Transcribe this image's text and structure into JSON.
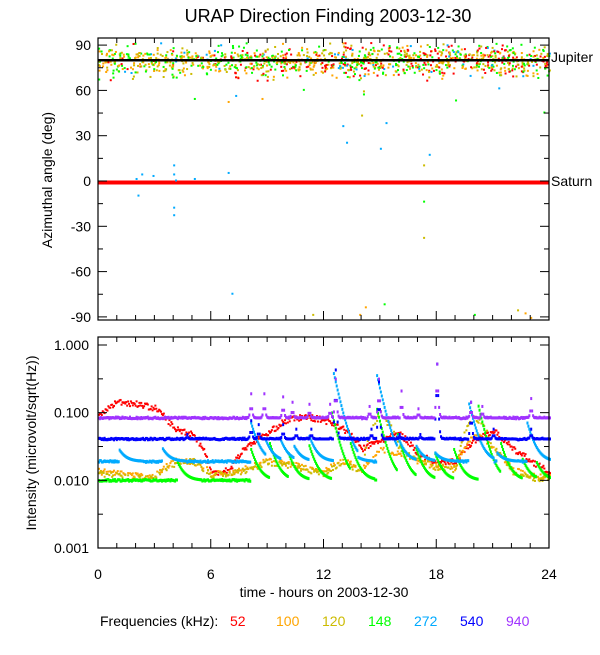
{
  "chart_data": [
    {
      "type": "scatter",
      "title": "URAP Direction Finding  2003-12-30",
      "ylabel": "Azimuthal angle (deg)",
      "xlabel": "",
      "xlim": [
        0,
        24
      ],
      "ylim": [
        -90,
        90
      ],
      "xticks": [
        0,
        6,
        12,
        18,
        24
      ],
      "yticks": [
        90,
        60,
        30,
        0,
        -30,
        -60,
        -90
      ],
      "ytick_labels": [
        "90",
        "60",
        "30",
        "0",
        "-30",
        "-60",
        "-90"
      ],
      "reference_lines": [
        {
          "label": "Jupiter",
          "value": 80,
          "color": "#000000"
        },
        {
          "label": "Saturn",
          "value": -1,
          "color": "#ff0000"
        }
      ],
      "cluster": {
        "center_deg": 80,
        "spread_deg": 5,
        "note_freqs": [
          "52",
          "100",
          "120",
          "148",
          "272"
        ]
      },
      "outliers": [
        {
          "t": 2.0,
          "deg": 2,
          "f": "272"
        },
        {
          "t": 2.3,
          "deg": 5,
          "f": "272"
        },
        {
          "t": 2.9,
          "deg": 4,
          "f": "272"
        },
        {
          "t": 2.1,
          "deg": -9,
          "f": "272"
        },
        {
          "t": 4.0,
          "deg": 11,
          "f": "272"
        },
        {
          "t": 4.0,
          "deg": 5,
          "f": "272"
        },
        {
          "t": 4.1,
          "deg": 1,
          "f": "272"
        },
        {
          "t": 4.0,
          "deg": -17,
          "f": "272"
        },
        {
          "t": 4.0,
          "deg": -22,
          "f": "272"
        },
        {
          "t": 5.1,
          "deg": 2,
          "f": "272"
        },
        {
          "t": 6.9,
          "deg": 6,
          "f": "272"
        },
        {
          "t": 7.3,
          "deg": 57,
          "f": "272"
        },
        {
          "t": 7.1,
          "deg": -74,
          "f": "272"
        },
        {
          "t": 13.0,
          "deg": 37,
          "f": "272"
        },
        {
          "t": 13.2,
          "deg": 26,
          "f": "272"
        },
        {
          "t": 15.0,
          "deg": 22,
          "f": "272"
        },
        {
          "t": 15.3,
          "deg": 39,
          "f": "272"
        },
        {
          "t": 17.6,
          "deg": 18,
          "f": "272"
        },
        {
          "t": 21.3,
          "deg": 62,
          "f": "272"
        },
        {
          "t": 5.1,
          "deg": 55,
          "f": "148"
        },
        {
          "t": 10.9,
          "deg": 61,
          "f": "148"
        },
        {
          "t": 15.2,
          "deg": -81,
          "f": "148"
        },
        {
          "t": 17.3,
          "deg": -13,
          "f": "148"
        },
        {
          "t": 19.0,
          "deg": 54,
          "f": "148"
        },
        {
          "t": 23.7,
          "deg": 46,
          "f": "148"
        },
        {
          "t": 14.1,
          "deg": 58,
          "f": "148"
        },
        {
          "t": 20.0,
          "deg": -88,
          "f": "148"
        },
        {
          "t": 6.9,
          "deg": 53,
          "f": "100"
        },
        {
          "t": 8.7,
          "deg": 55,
          "f": "100"
        },
        {
          "t": 14.2,
          "deg": -83,
          "f": "100"
        },
        {
          "t": 13.9,
          "deg": -88,
          "f": "100"
        },
        {
          "t": 22.7,
          "deg": -87,
          "f": "100"
        },
        {
          "t": 23.0,
          "deg": -90,
          "f": "100"
        },
        {
          "t": 14.0,
          "deg": 44,
          "f": "120"
        },
        {
          "t": 14.1,
          "deg": 60,
          "f": "120"
        },
        {
          "t": 17.3,
          "deg": 11,
          "f": "120"
        },
        {
          "t": 17.3,
          "deg": -37,
          "f": "120"
        },
        {
          "t": 11.4,
          "deg": -88,
          "f": "120"
        },
        {
          "t": 22.3,
          "deg": -85,
          "f": "120"
        }
      ]
    },
    {
      "type": "scatter",
      "ylabel": "Intensity (microvolt/sqrt(Hz))",
      "xlabel": "time - hours on 2003-12-30",
      "xlim": [
        0,
        24
      ],
      "ylim": [
        0.001,
        1.0
      ],
      "yscale": "log",
      "xticks": [
        0,
        6,
        12,
        18,
        24
      ],
      "xtick_labels": [
        "0",
        "6",
        "12",
        "18",
        "24"
      ],
      "yticks": [
        1.0,
        0.1,
        0.01,
        0.001
      ],
      "ytick_labels": [
        "1.000",
        "0.100",
        "0.010",
        "0.001"
      ],
      "legend_title": "Frequencies (kHz):",
      "legend_placement": "bottom",
      "series": [
        {
          "name": "52",
          "color": "#ff0000",
          "hourly": [
            0.09,
            0.15,
            0.14,
            0.12,
            0.06,
            0.05,
            0.013,
            0.015,
            0.035,
            0.05,
            0.08,
            0.09,
            0.08,
            0.06,
            0.03,
            0.04,
            0.05,
            0.025,
            0.018,
            0.02,
            0.04,
            0.055,
            0.03,
            0.02,
            0.013
          ],
          "peaks": []
        },
        {
          "name": "100",
          "color": "#ffa500",
          "hourly": [
            0.014,
            0.013,
            0.012,
            0.012,
            0.02,
            0.02,
            0.013,
            0.013,
            0.016,
            0.02,
            0.018,
            0.016,
            0.014,
            0.02,
            0.015,
            0.03,
            0.025,
            0.02,
            0.017,
            0.016,
            0.05,
            0.03,
            0.015,
            0.012,
            0.012
          ],
          "peaks": []
        },
        {
          "name": "120",
          "color": "#ccbb00",
          "hourly": [
            0.013,
            0.012,
            0.011,
            0.011,
            0.018,
            0.02,
            0.012,
            0.013,
            0.015,
            0.019,
            0.017,
            0.015,
            0.013,
            0.019,
            0.014,
            0.1,
            0.03,
            0.02,
            0.016,
            0.015,
            0.09,
            0.03,
            0.014,
            0.011,
            0.011
          ],
          "peaks": []
        },
        {
          "name": "148",
          "color": "#00ff00",
          "baseline": 0.0105,
          "peaks": [
            [
              4.3,
              0.017
            ],
            [
              8.2,
              0.025
            ],
            [
              9.2,
              0.03
            ],
            [
              10.2,
              0.022
            ],
            [
              11.3,
              0.028
            ],
            [
              12.5,
              0.08
            ],
            [
              13.5,
              0.03
            ],
            [
              14.9,
              0.09
            ],
            [
              16.0,
              0.04
            ],
            [
              17.0,
              0.025
            ],
            [
              18.0,
              0.022
            ],
            [
              19.0,
              0.025
            ],
            [
              20.3,
              0.1
            ],
            [
              21.5,
              0.03
            ],
            [
              22.6,
              0.02
            ],
            [
              23.4,
              0.017
            ]
          ]
        },
        {
          "name": "272",
          "color": "#00aaff",
          "baseline": 0.02,
          "peaks": [
            [
              1.2,
              0.027
            ],
            [
              3.5,
              0.028
            ],
            [
              8.2,
              0.06
            ],
            [
              9.0,
              0.035
            ],
            [
              9.8,
              0.035
            ],
            [
              10.5,
              0.03
            ],
            [
              11.3,
              0.04
            ],
            [
              12.6,
              0.3
            ],
            [
              13.4,
              0.03
            ],
            [
              14.9,
              0.28
            ],
            [
              16.0,
              0.04
            ],
            [
              17.0,
              0.03
            ],
            [
              18.0,
              0.025
            ],
            [
              19.8,
              0.11
            ],
            [
              21.3,
              0.025
            ],
            [
              22.9,
              0.06
            ]
          ]
        },
        {
          "name": "540",
          "color": "#0000ff",
          "baseline": 0.043,
          "peaks": [
            [
              4.7,
              0.05
            ],
            [
              8.1,
              0.08
            ],
            [
              8.5,
              0.07
            ],
            [
              9.8,
              0.07
            ],
            [
              10.5,
              0.06
            ],
            [
              11.3,
              0.06
            ],
            [
              12.6,
              0.45
            ],
            [
              14.5,
              0.06
            ],
            [
              14.9,
              0.3
            ],
            [
              16.0,
              0.05
            ],
            [
              17.1,
              0.05
            ],
            [
              18.0,
              0.55
            ],
            [
              19.8,
              0.15
            ],
            [
              21.0,
              0.06
            ],
            [
              23.0,
              0.06
            ]
          ]
        },
        {
          "name": "940",
          "color": "#a033ff",
          "baseline": 0.088,
          "peaks": [
            [
              8.1,
              0.2
            ],
            [
              8.8,
              0.2
            ],
            [
              9.8,
              0.18
            ],
            [
              10.3,
              0.15
            ],
            [
              11.2,
              0.14
            ],
            [
              12.3,
              0.14
            ],
            [
              12.6,
              0.33
            ],
            [
              14.4,
              0.13
            ],
            [
              14.9,
              0.33
            ],
            [
              16.1,
              0.22
            ],
            [
              17.0,
              0.12
            ],
            [
              18.0,
              0.55
            ],
            [
              19.8,
              0.15
            ],
            [
              20.4,
              0.13
            ],
            [
              23.0,
              0.17
            ]
          ]
        }
      ]
    }
  ]
}
